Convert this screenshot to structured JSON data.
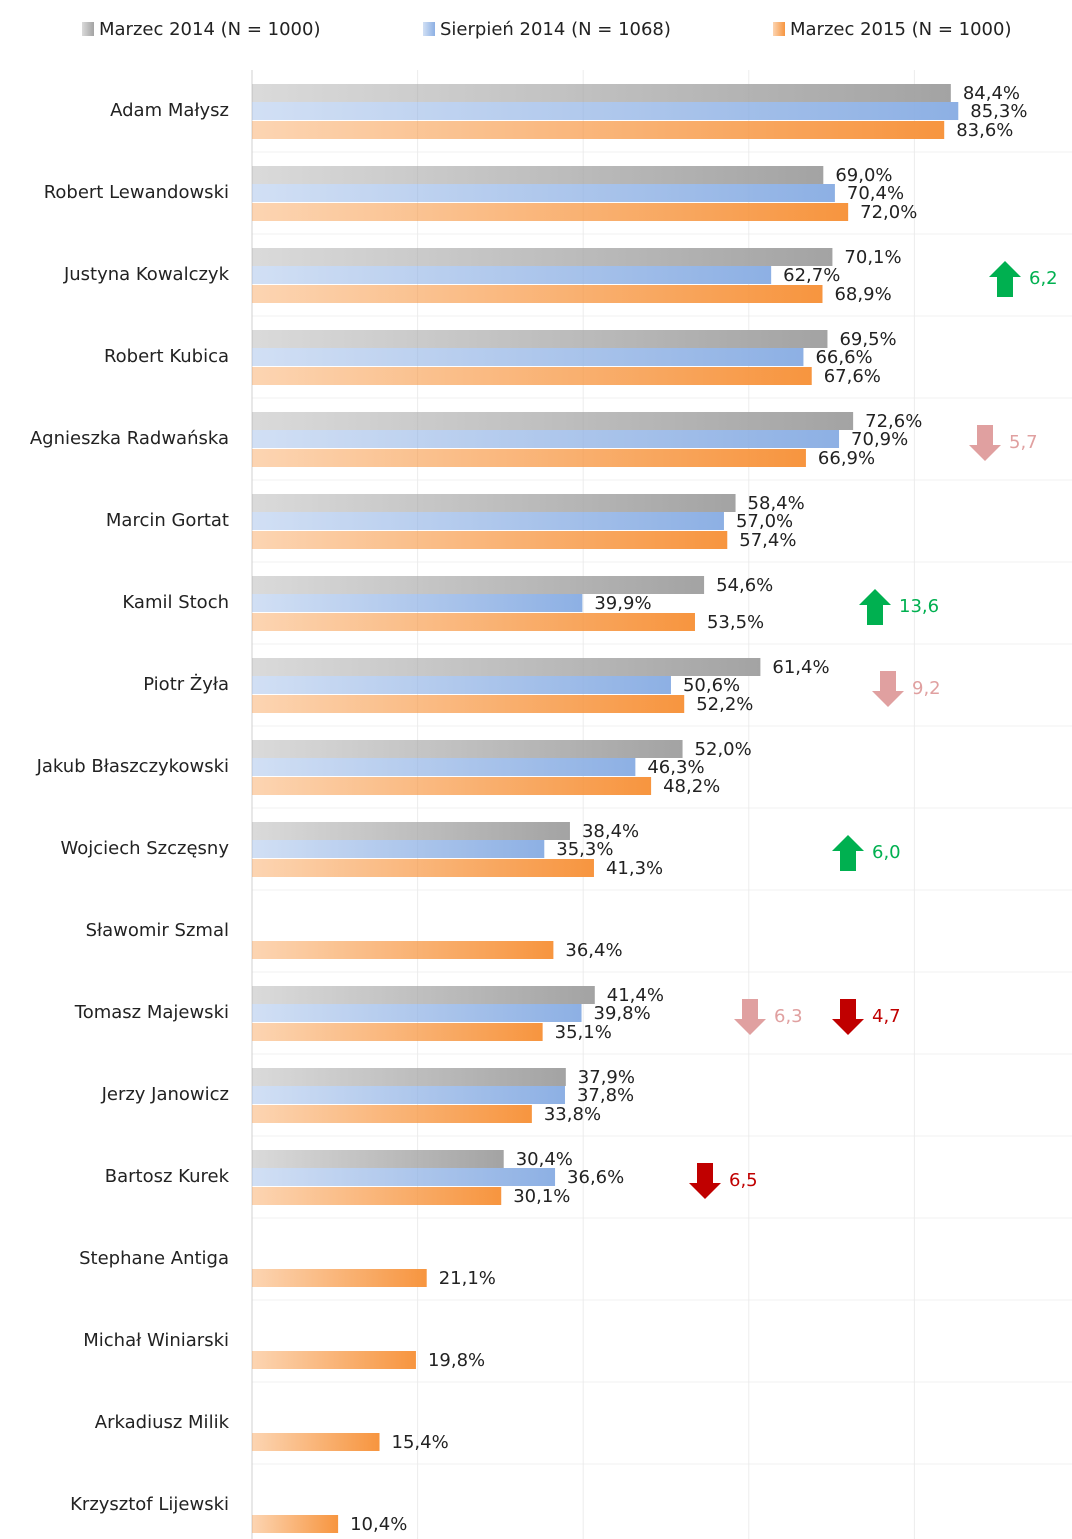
{
  "chart_data": {
    "type": "bar",
    "orientation": "horizontal",
    "categories": [
      "Adam Małysz",
      "Robert Lewandowski",
      "Justyna Kowalczyk",
      "Robert Kubica",
      "Agnieszka Radwańska",
      "Marcin Gortat",
      "Kamil Stoch",
      "Piotr Żyła",
      "Jakub Błaszczykowski",
      "Wojciech Szczęsny",
      "Sławomir Szmal",
      "Tomasz Majewski",
      "Jerzy Janowicz",
      "Bartosz Kurek",
      "Stephane Antiga",
      "Michał Winiarski",
      "Arkadiusz Milik",
      "Krzysztof Lijewski"
    ],
    "series": [
      {
        "name": "Marzec 2014 (N = 1000)",
        "color": "#a3a3a3",
        "values": [
          84.4,
          69.0,
          70.1,
          69.5,
          72.6,
          58.4,
          54.6,
          61.4,
          52.0,
          38.4,
          null,
          41.4,
          37.9,
          30.4,
          null,
          null,
          null,
          null
        ],
        "value_labels": [
          "84,4%",
          "69,0%",
          "70,1%",
          "69,5%",
          "72,6%",
          "58,4%",
          "54,6%",
          "61,4%",
          "52,0%",
          "38,4%",
          null,
          "41,4%",
          "37,9%",
          "30,4%",
          null,
          null,
          null,
          null
        ]
      },
      {
        "name": "Sierpień 2014 (N = 1068)",
        "color": "#8db0e4",
        "values": [
          85.3,
          70.4,
          62.7,
          66.6,
          70.9,
          57.0,
          39.9,
          50.6,
          46.3,
          35.3,
          null,
          39.8,
          37.8,
          36.6,
          null,
          null,
          null,
          null
        ],
        "value_labels": [
          "85,3%",
          "70,4%",
          "62,7%",
          "66,6%",
          "70,9%",
          "57,0%",
          "39,9%",
          "50,6%",
          "46,3%",
          "35,3%",
          null,
          "39,8%",
          "37,8%",
          "36,6%",
          null,
          null,
          null,
          null
        ]
      },
      {
        "name": "Marzec 2015 (N = 1000)",
        "color": "#f7953f",
        "values": [
          83.6,
          72.0,
          68.9,
          67.6,
          66.9,
          57.4,
          53.5,
          52.2,
          48.2,
          41.3,
          36.4,
          35.1,
          33.8,
          30.1,
          21.1,
          19.8,
          15.4,
          10.4
        ],
        "value_labels": [
          "83,6%",
          "72,0%",
          "68,9%",
          "67,6%",
          "66,9%",
          "57,4%",
          "53,5%",
          "52,2%",
          "48,2%",
          "41,3%",
          "36,4%",
          "35,1%",
          "33,8%",
          "30,1%",
          "21,1%",
          "19,8%",
          "15,4%",
          "10,4%"
        ]
      }
    ],
    "xlim": [
      0,
      100
    ],
    "xticks": [
      0,
      20,
      40,
      60,
      80
    ],
    "grid": true,
    "legend": "top",
    "annotations": [
      {
        "category": "Justyna Kowalczyk",
        "label": "6,2",
        "direction": "up",
        "color": "#00b050"
      },
      {
        "category": "Agnieszka Radwańska",
        "label": "5,7",
        "direction": "down",
        "color": "#e0a0a0"
      },
      {
        "category": "Kamil Stoch",
        "label": "13,6",
        "direction": "up",
        "color": "#00b050"
      },
      {
        "category": "Piotr Żyła",
        "label": "9,2",
        "direction": "down",
        "color": "#e0a0a0"
      },
      {
        "category": "Wojciech Szczęsny",
        "label": "6,0",
        "direction": "up",
        "color": "#00b050"
      },
      {
        "category": "Tomasz Majewski",
        "label": "6,3",
        "direction": "down",
        "color": "#e0a0a0"
      },
      {
        "category": "Tomasz Majewski",
        "label": "4,7",
        "direction": "down",
        "color": "#c00000"
      },
      {
        "category": "Bartosz Kurek",
        "label": "6,5",
        "direction": "down",
        "color": "#c00000"
      }
    ]
  }
}
